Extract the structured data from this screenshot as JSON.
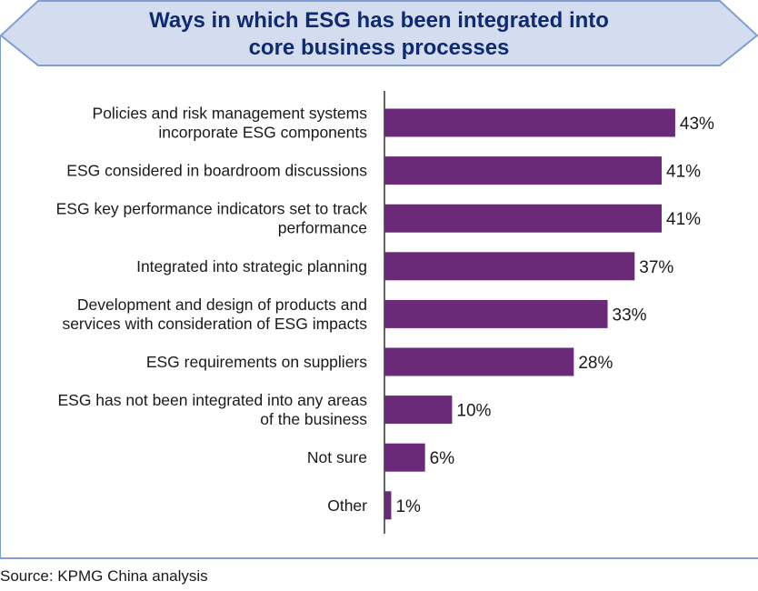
{
  "colors": {
    "bar": "#6a2a78",
    "frame": "#7f9fd0",
    "banner_fill": "#d3ddef",
    "title": "#0f2a6e",
    "axis": "#333333"
  },
  "source_note": "Source: KPMG China analysis",
  "chart_data": {
    "type": "bar",
    "orientation": "horizontal",
    "title_lines": [
      "Ways in which ESG has been integrated into",
      "core business processes"
    ],
    "categories": [
      [
        "Policies and risk management systems",
        "incorporate ESG components"
      ],
      [
        "ESG considered in boardroom discussions"
      ],
      [
        "ESG key performance indicators set to track",
        "performance"
      ],
      [
        "Integrated into strategic planning"
      ],
      [
        "Development and design of products and",
        "services with consideration of ESG impacts"
      ],
      [
        "ESG requirements on suppliers"
      ],
      [
        "ESG has not been integrated into any areas",
        "of the business"
      ],
      [
        "Not sure"
      ],
      [
        "Other"
      ]
    ],
    "values": [
      43,
      41,
      41,
      37,
      33,
      28,
      10,
      6,
      1
    ],
    "value_labels": [
      "43%",
      "41%",
      "41%",
      "37%",
      "33%",
      "28%",
      "10%",
      "6%",
      "1%"
    ],
    "unit": "%",
    "xlim": [
      0,
      45
    ],
    "grid": false,
    "legend": "none"
  }
}
